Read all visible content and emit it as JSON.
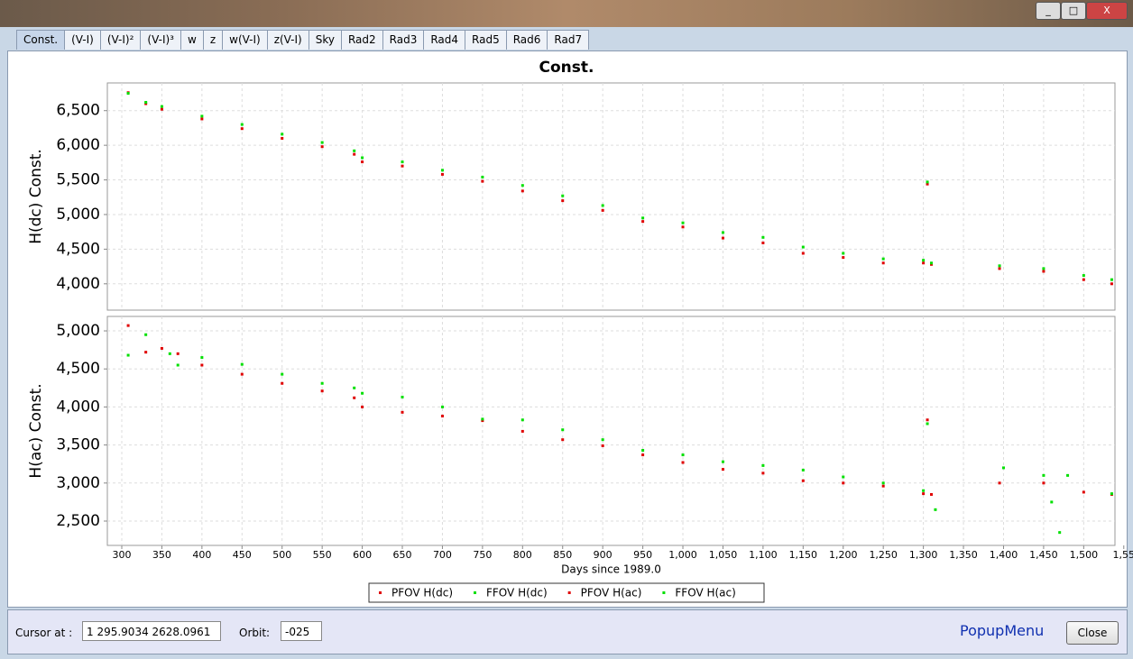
{
  "tabs": [
    "Const.",
    "(V-I)",
    "(V-I)²",
    "(V-I)³",
    "w",
    "z",
    "w(V-I)",
    "z(V-I)",
    "Sky",
    "Rad2",
    "Rad3",
    "Rad4",
    "Rad5",
    "Rad6",
    "Rad7"
  ],
  "footer": {
    "cursor_label": "Cursor at :",
    "cursor_value": "1   295.9034  2628.0961",
    "orbit_label": "Orbit:",
    "orbit_value": "-025",
    "popup": "PopupMenu",
    "close": "Close"
  },
  "chart_data": [
    {
      "type": "scatter",
      "title": "Const.",
      "y_label": "H(dc) Const.",
      "grid": true,
      "xlim": [
        282,
        1539
      ],
      "ylim": [
        3620,
        6900
      ],
      "yticks": [
        {
          "value": 4000,
          "label": "4,000"
        },
        {
          "value": 4500,
          "label": "4,500"
        },
        {
          "value": 5000,
          "label": "5,000"
        },
        {
          "value": 5500,
          "label": "5,500"
        },
        {
          "value": 6000,
          "label": "6,000"
        },
        {
          "value": 6500,
          "label": "6,500"
        }
      ],
      "series": [
        {
          "name": "PFOV H(dc)",
          "color": "#e00000",
          "x": [
            308,
            330,
            350,
            400,
            450,
            500,
            550,
            590,
            600,
            650,
            700,
            750,
            800,
            850,
            900,
            950,
            1000,
            1050,
            1100,
            1150,
            1200,
            1250,
            1300,
            1305,
            1310,
            1395,
            1450,
            1500,
            1535
          ],
          "values": [
            6760,
            6600,
            6520,
            6380,
            6240,
            6100,
            5980,
            5870,
            5760,
            5700,
            5580,
            5480,
            5340,
            5200,
            5060,
            4900,
            4820,
            4660,
            4590,
            4440,
            4380,
            4300,
            4300,
            5440,
            4280,
            4220,
            4180,
            4060,
            4000
          ]
        },
        {
          "name": "FFOV H(dc)",
          "color": "#00e000",
          "x": [
            308,
            330,
            350,
            400,
            450,
            500,
            550,
            590,
            600,
            650,
            700,
            750,
            800,
            850,
            900,
            950,
            1000,
            1050,
            1100,
            1150,
            1200,
            1250,
            1300,
            1305,
            1310,
            1395,
            1450,
            1500,
            1535
          ],
          "values": [
            6750,
            6620,
            6560,
            6420,
            6300,
            6160,
            6040,
            5920,
            5820,
            5760,
            5640,
            5540,
            5420,
            5270,
            5130,
            4950,
            4880,
            4740,
            4670,
            4530,
            4440,
            4360,
            4340,
            5470,
            4300,
            4260,
            4220,
            4120,
            4060
          ]
        }
      ]
    },
    {
      "type": "scatter",
      "y_label": "H(ac) Const.",
      "x_label": "Days since 1989.0",
      "grid": true,
      "xlim": [
        282,
        1539
      ],
      "ylim": [
        2180,
        5190
      ],
      "xticks": [
        300,
        350,
        400,
        450,
        500,
        550,
        600,
        650,
        700,
        750,
        800,
        850,
        900,
        950,
        {
          "value": 1000,
          "label": "1,000"
        },
        {
          "value": 1050,
          "label": "1,050"
        },
        {
          "value": 1100,
          "label": "1,100"
        },
        {
          "value": 1150,
          "label": "1,150"
        },
        {
          "value": 1200,
          "label": "1,200"
        },
        {
          "value": 1250,
          "label": "1,250"
        },
        {
          "value": 1300,
          "label": "1,300"
        },
        {
          "value": 1350,
          "label": "1,350"
        },
        {
          "value": 1400,
          "label": "1,400"
        },
        {
          "value": 1450,
          "label": "1,450"
        },
        {
          "value": 1500,
          "label": "1,500"
        },
        {
          "value": 1550,
          "label": "1,55"
        }
      ],
      "yticks": [
        {
          "value": 2500,
          "label": "2,500"
        },
        {
          "value": 3000,
          "label": "3,000"
        },
        {
          "value": 3500,
          "label": "3,500"
        },
        {
          "value": 4000,
          "label": "4,000"
        },
        {
          "value": 4500,
          "label": "4,500"
        },
        {
          "value": 5000,
          "label": "5,000"
        }
      ],
      "series": [
        {
          "name": "PFOV H(ac)",
          "color": "#e00000",
          "x": [
            308,
            330,
            350,
            370,
            400,
            450,
            500,
            550,
            590,
            600,
            650,
            700,
            750,
            800,
            850,
            900,
            950,
            1000,
            1050,
            1100,
            1150,
            1200,
            1250,
            1300,
            1305,
            1310,
            1395,
            1450,
            1500,
            1535
          ],
          "values": [
            5070,
            4720,
            4770,
            4700,
            4550,
            4430,
            4310,
            4210,
            4120,
            4000,
            3930,
            3880,
            3820,
            3680,
            3570,
            3490,
            3370,
            3270,
            3180,
            3130,
            3030,
            3000,
            2960,
            2860,
            3830,
            2850,
            3000,
            3000,
            2880,
            2850
          ]
        },
        {
          "name": "FFOV H(ac)",
          "color": "#00e000",
          "x": [
            308,
            330,
            360,
            370,
            400,
            450,
            500,
            550,
            590,
            600,
            650,
            700,
            750,
            800,
            850,
            900,
            950,
            1000,
            1050,
            1100,
            1150,
            1200,
            1250,
            1300,
            1305,
            1315,
            1400,
            1450,
            1460,
            1470,
            1480,
            1535
          ],
          "values": [
            4680,
            4950,
            4700,
            4550,
            4650,
            4560,
            4430,
            4310,
            4250,
            4180,
            4130,
            4000,
            3840,
            3830,
            3700,
            3570,
            3430,
            3370,
            3280,
            3230,
            3170,
            3080,
            3000,
            2900,
            3780,
            2650,
            3200,
            3100,
            2750,
            2350,
            3100,
            2860
          ]
        }
      ]
    }
  ]
}
